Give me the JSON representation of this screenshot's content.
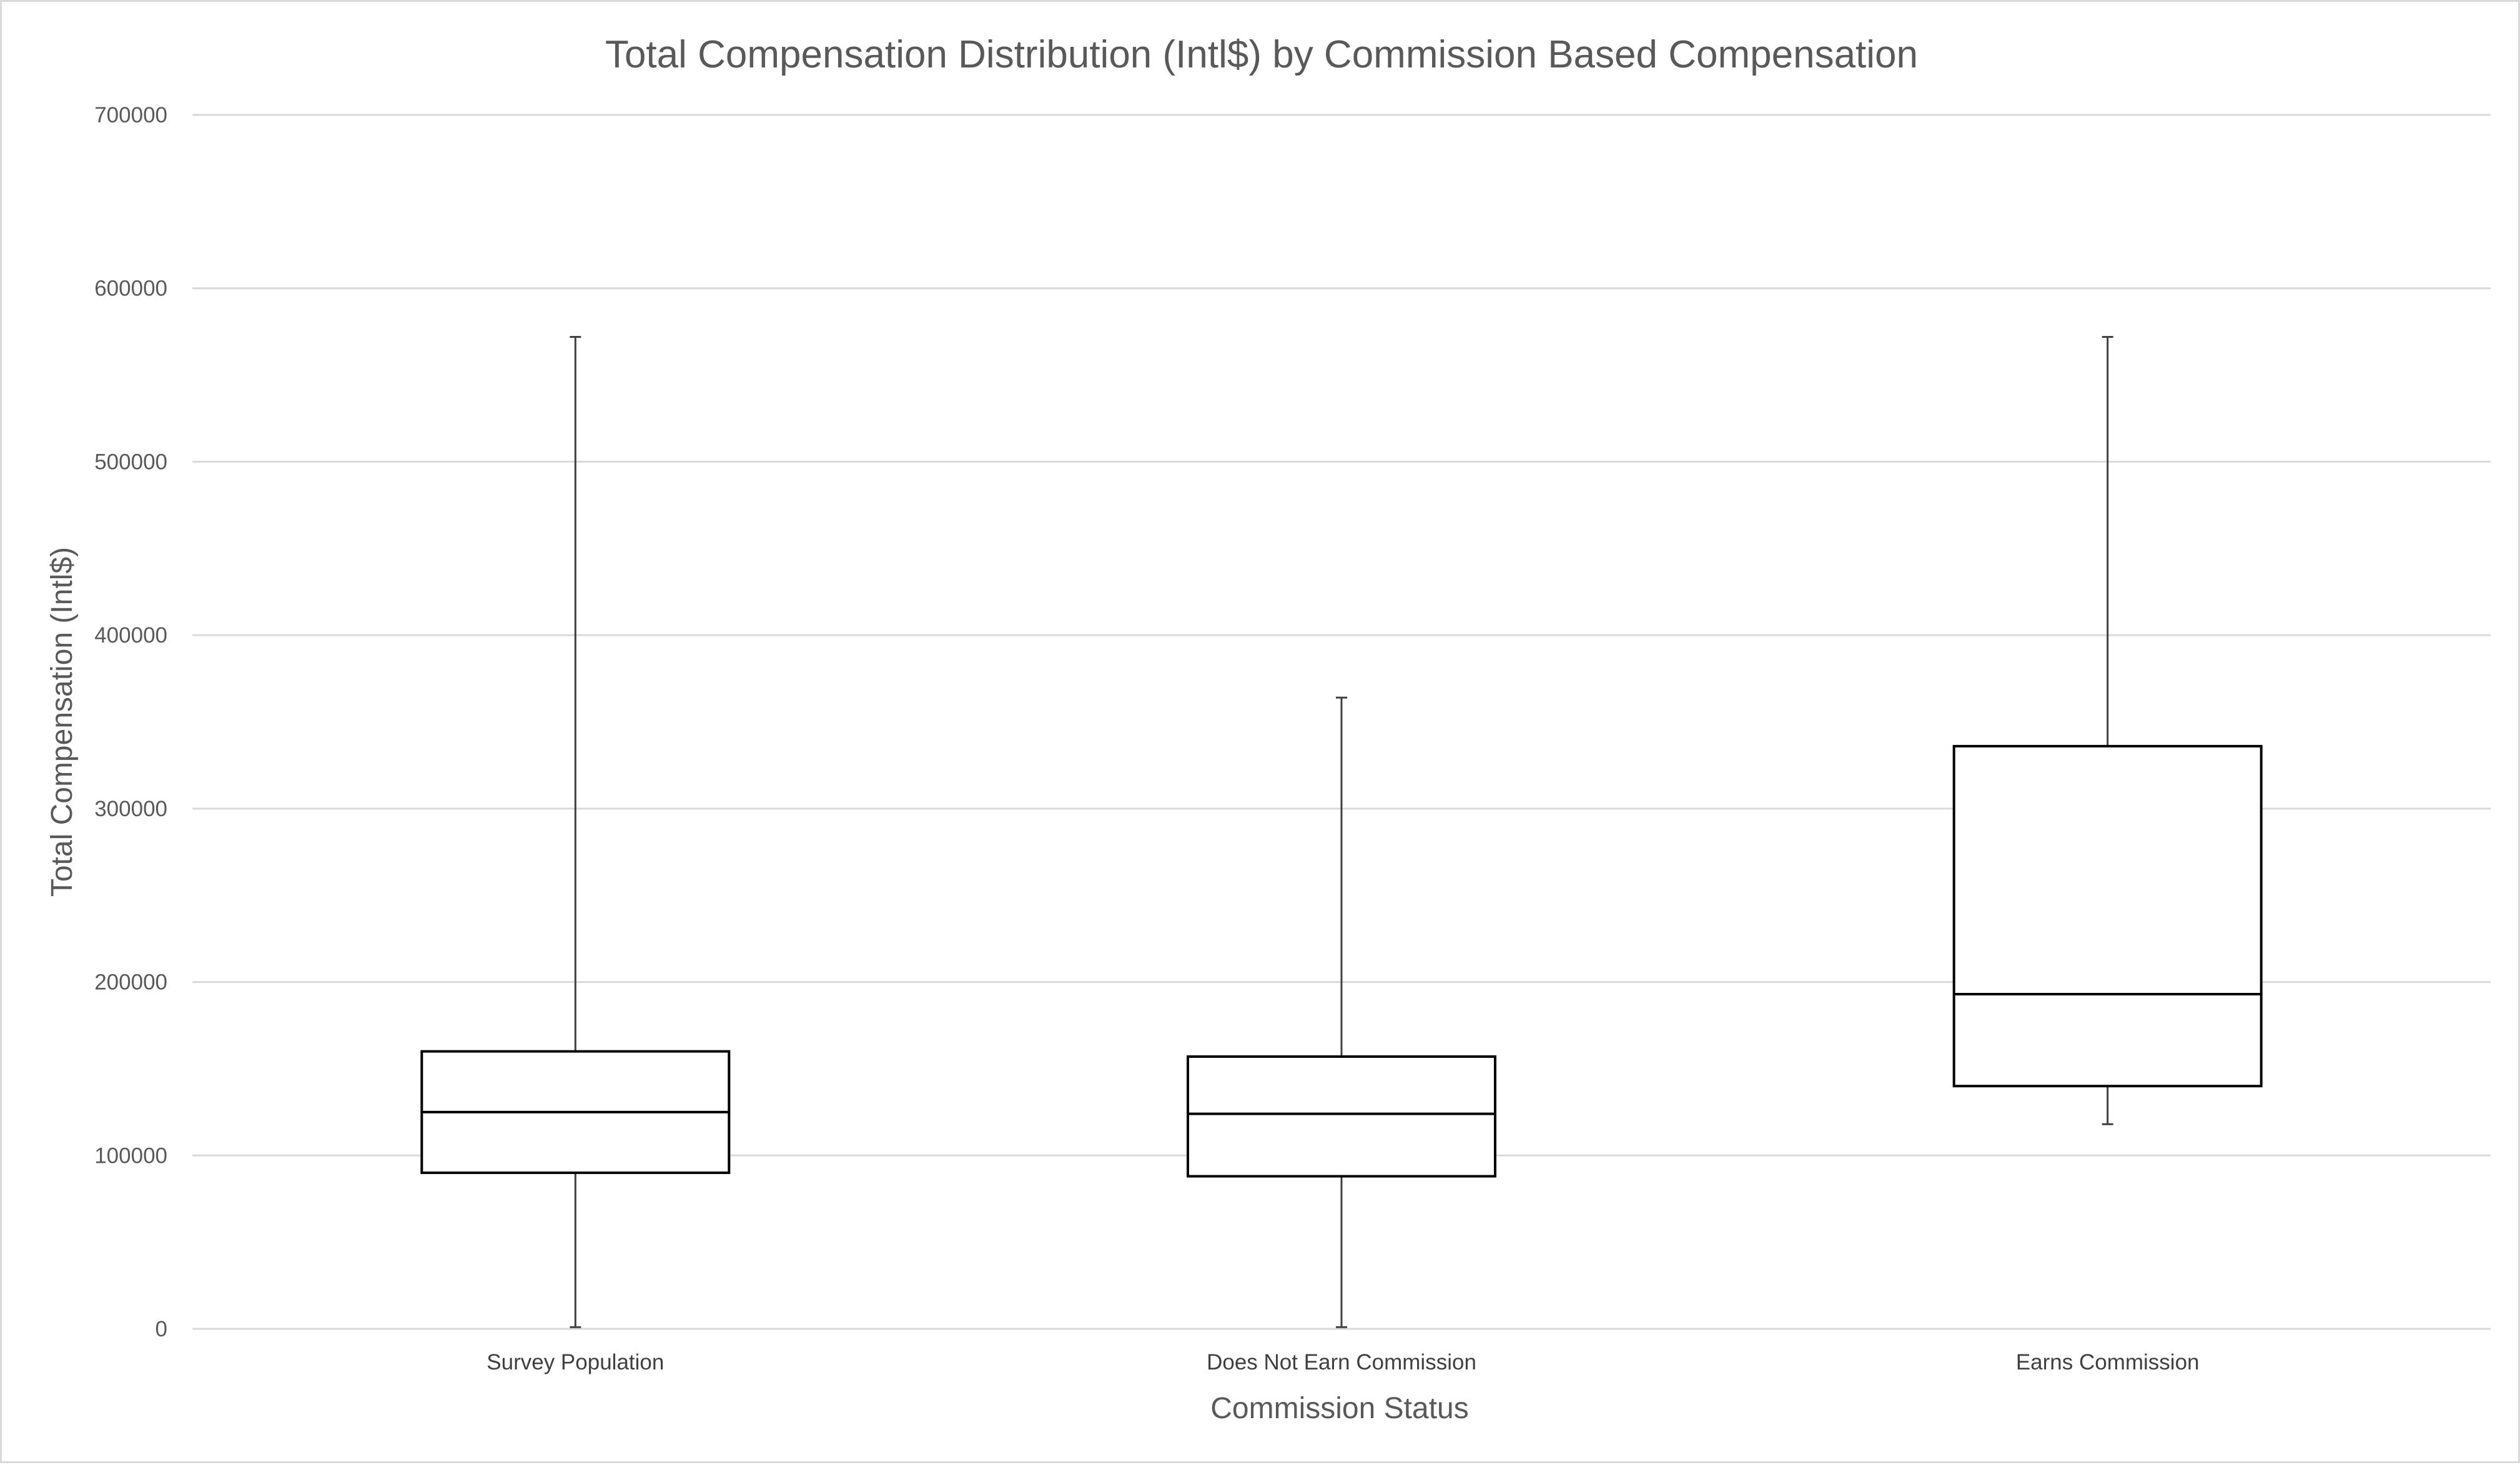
{
  "chart_data": {
    "type": "box",
    "title": "Total Compensation Distribution (Intl$) by Commission Based Compensation",
    "xlabel": "Commission Status",
    "ylabel": "Total Compensation (Intl$)",
    "ylim": [
      0,
      700000
    ],
    "yticks": [
      0,
      100000,
      200000,
      300000,
      400000,
      500000,
      600000,
      700000
    ],
    "ytick_labels": [
      "0",
      "100000",
      "200000",
      "300000",
      "400000",
      "500000",
      "600000",
      "700000"
    ],
    "grid": true,
    "categories": [
      "Survey Population",
      "Does Not Earn Commission",
      "Earns Commission"
    ],
    "boxes": [
      {
        "category": "Survey Population",
        "min": 1000,
        "q1": 90000,
        "median": 125000,
        "q3": 160000,
        "max": 572000
      },
      {
        "category": "Does Not Earn Commission",
        "min": 1000,
        "q1": 88000,
        "median": 124000,
        "q3": 157000,
        "max": 364000
      },
      {
        "category": "Earns Commission",
        "min": 118000,
        "q1": 140000,
        "median": 193000,
        "q3": 336000,
        "max": 572000
      }
    ],
    "colors": {
      "box_stroke": "#000000",
      "whisker": "#404040",
      "grid": "#d9d9d9",
      "text": "#595959"
    }
  }
}
